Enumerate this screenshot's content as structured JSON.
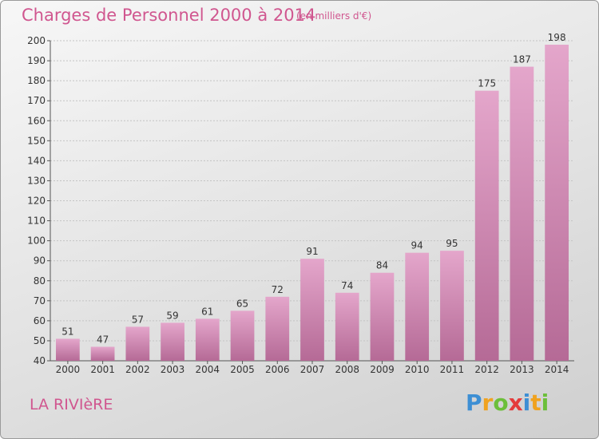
{
  "chart_data": {
    "type": "bar",
    "title": "Charges de Personnel 2000 à 2014",
    "subtitle": "(en milliers d'€)",
    "categories": [
      "2000",
      "2001",
      "2002",
      "2003",
      "2004",
      "2005",
      "2006",
      "2007",
      "2008",
      "2009",
      "2010",
      "2011",
      "2012",
      "2013",
      "2014"
    ],
    "values": [
      51,
      47,
      57,
      59,
      61,
      65,
      72,
      91,
      74,
      84,
      94,
      95,
      175,
      187,
      198
    ],
    "ylim": [
      40,
      200
    ],
    "yticks": [
      40,
      50,
      60,
      70,
      80,
      90,
      100,
      110,
      120,
      130,
      140,
      150,
      160,
      170,
      180,
      190,
      200
    ],
    "grid": true,
    "colors": {
      "bar_top": "#e4a6cb",
      "bar_bottom": "#b56a96",
      "accent": "#d0568f"
    }
  },
  "footer": {
    "commune": "LA RIVIèRE",
    "logo_letters": [
      {
        "char": "P",
        "color": "#3d8fd4"
      },
      {
        "char": "r",
        "color": "#f0a21f"
      },
      {
        "char": "o",
        "color": "#6cbf3a"
      },
      {
        "char": "x",
        "color": "#e43c3c"
      },
      {
        "char": "i",
        "color": "#3d8fd4"
      },
      {
        "char": "t",
        "color": "#f0a21f"
      },
      {
        "char": "i",
        "color": "#6cbf3a"
      }
    ]
  }
}
